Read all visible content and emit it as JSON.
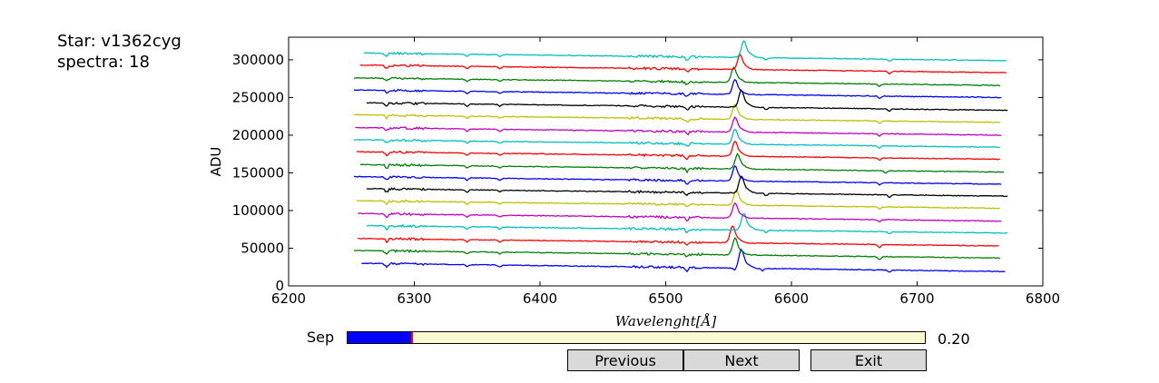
{
  "header": {
    "star_label": "Star: v1362cyg",
    "spectra_label": "spectra: 18"
  },
  "controls": {
    "slider_label": "Sep",
    "slider_value": 0.2,
    "slider_value_text": "0.20",
    "slider_range": [
      0,
      1
    ],
    "buttons": {
      "previous": "Previous",
      "next": "Next",
      "exit": "Exit"
    }
  },
  "chart_data": {
    "type": "line",
    "title": "",
    "xlabel": "$Wavelenght [\\AA]$",
    "ylabel": "ADU",
    "xlim": [
      6200,
      6800
    ],
    "ylim": [
      0,
      330000
    ],
    "xticks": [
      6200,
      6300,
      6400,
      6500,
      6600,
      6700,
      6800
    ],
    "yticks": [
      0,
      50000,
      100000,
      150000,
      200000,
      250000,
      300000
    ],
    "grid": false,
    "series_note_colors": [
      "#0000ff",
      "#008000",
      "#ff0000",
      "#00bfbf",
      "#bfbf00",
      "#bf00bf",
      "#000000"
    ],
    "series": [
      {
        "color": "#0000ff",
        "x_range": [
          6258,
          6770
        ],
        "offset": 30000,
        "slope": -11000,
        "peak": [
          6560,
          20000
        ],
        "dips": [
          [
            6278,
            4000
          ],
          [
            6342,
            3000
          ],
          [
            6368,
            2500
          ],
          [
            6517,
            4000
          ],
          [
            6555,
            3000
          ],
          [
            6577,
            3000
          ],
          [
            6678,
            3000
          ]
        ]
      },
      {
        "color": "#008000",
        "x_range": [
          6252,
          6766
        ],
        "offset": 47000,
        "slope": -10000,
        "peak": [
          6555,
          18000
        ],
        "dips": [
          [
            6278,
            4000
          ],
          [
            6342,
            3000
          ],
          [
            6368,
            2500
          ],
          [
            6517,
            4000
          ],
          [
            6670,
            4000
          ]
        ]
      },
      {
        "color": "#ff0000",
        "x_range": [
          6255,
          6765
        ],
        "offset": 63000,
        "slope": -10000,
        "peak": [
          6553,
          18000
        ],
        "dips": [
          [
            6278,
            4000
          ],
          [
            6342,
            3000
          ],
          [
            6368,
            2500
          ],
          [
            6517,
            4000
          ],
          [
            6670,
            4000
          ]
        ]
      },
      {
        "color": "#00bfbf",
        "x_range": [
          6262,
          6772
        ],
        "offset": 80000,
        "slope": -10000,
        "peak": [
          6562,
          18000
        ],
        "dips": [
          [
            6278,
            4000
          ],
          [
            6342,
            3000
          ],
          [
            6368,
            2500
          ],
          [
            6517,
            4000
          ],
          [
            6580,
            3000
          ],
          [
            6678,
            3000
          ]
        ]
      },
      {
        "color": "#bf00bf",
        "x_range": [
          6255,
          6767
        ],
        "offset": 96000,
        "slope": -10000,
        "peak": [
          6555,
          16000
        ],
        "dips": [
          [
            6278,
            4000
          ],
          [
            6342,
            3000
          ],
          [
            6368,
            2500
          ],
          [
            6517,
            4000
          ],
          [
            6670,
            3000
          ]
        ]
      },
      {
        "color": "#bfbf00",
        "x_range": [
          6254,
          6766
        ],
        "offset": 113000,
        "slope": -10000,
        "peak": [
          6556,
          16000
        ],
        "dips": [
          [
            6278,
            4000
          ],
          [
            6342,
            3000
          ],
          [
            6368,
            2500
          ],
          [
            6517,
            4000
          ],
          [
            6670,
            3000
          ]
        ]
      },
      {
        "color": "#000000",
        "x_range": [
          6262,
          6772
        ],
        "offset": 129000,
        "slope": -10000,
        "peak": [
          6560,
          18000
        ],
        "dips": [
          [
            6278,
            4000
          ],
          [
            6342,
            3000
          ],
          [
            6368,
            2500
          ],
          [
            6517,
            4000
          ],
          [
            6580,
            3000
          ],
          [
            6678,
            3000
          ]
        ]
      },
      {
        "color": "#0000ff",
        "x_range": [
          6252,
          6767
        ],
        "offset": 145000,
        "slope": -10000,
        "peak": [
          6555,
          16000
        ],
        "dips": [
          [
            6278,
            4000
          ],
          [
            6342,
            3000
          ],
          [
            6368,
            2500
          ],
          [
            6517,
            4000
          ],
          [
            6670,
            3000
          ]
        ]
      },
      {
        "color": "#008000",
        "x_range": [
          6257,
          6769
        ],
        "offset": 161000,
        "slope": -10000,
        "peak": [
          6557,
          16000
        ],
        "dips": [
          [
            6278,
            4000
          ],
          [
            6342,
            3000
          ],
          [
            6368,
            2500
          ],
          [
            6517,
            4000
          ],
          [
            6675,
            3000
          ]
        ]
      },
      {
        "color": "#ff0000",
        "x_range": [
          6254,
          6766
        ],
        "offset": 178000,
        "slope": -10000,
        "peak": [
          6555,
          16000
        ],
        "dips": [
          [
            6278,
            4000
          ],
          [
            6342,
            3000
          ],
          [
            6368,
            2500
          ],
          [
            6517,
            4000
          ],
          [
            6670,
            3000
          ]
        ]
      },
      {
        "color": "#00bfbf",
        "x_range": [
          6252,
          6766
        ],
        "offset": 194000,
        "slope": -10000,
        "peak": [
          6555,
          16000
        ],
        "dips": [
          [
            6278,
            4000
          ],
          [
            6342,
            3000
          ],
          [
            6368,
            2500
          ],
          [
            6517,
            4000
          ],
          [
            6670,
            3000
          ]
        ]
      },
      {
        "color": "#bf00bf",
        "x_range": [
          6253,
          6767
        ],
        "offset": 210000,
        "slope": -10000,
        "peak": [
          6555,
          16000
        ],
        "dips": [
          [
            6278,
            4000
          ],
          [
            6342,
            3000
          ],
          [
            6368,
            2500
          ],
          [
            6517,
            4000
          ],
          [
            6670,
            3000
          ]
        ]
      },
      {
        "color": "#bfbf00",
        "x_range": [
          6252,
          6766
        ],
        "offset": 227000,
        "slope": -10000,
        "peak": [
          6555,
          16000
        ],
        "dips": [
          [
            6278,
            4000
          ],
          [
            6342,
            3000
          ],
          [
            6368,
            2500
          ],
          [
            6517,
            4000
          ],
          [
            6670,
            3000
          ]
        ]
      },
      {
        "color": "#000000",
        "x_range": [
          6262,
          6772
        ],
        "offset": 243000,
        "slope": -10000,
        "peak": [
          6560,
          18000
        ],
        "dips": [
          [
            6278,
            4000
          ],
          [
            6342,
            3000
          ],
          [
            6368,
            2500
          ],
          [
            6517,
            4000
          ],
          [
            6580,
            3000
          ],
          [
            6678,
            3000
          ]
        ]
      },
      {
        "color": "#0000ff",
        "x_range": [
          6252,
          6767
        ],
        "offset": 260000,
        "slope": -10000,
        "peak": [
          6555,
          16000
        ],
        "dips": [
          [
            6278,
            4000
          ],
          [
            6342,
            3000
          ],
          [
            6368,
            2500
          ],
          [
            6517,
            4000
          ],
          [
            6670,
            3000
          ]
        ]
      },
      {
        "color": "#008000",
        "x_range": [
          6252,
          6766
        ],
        "offset": 276000,
        "slope": -10000,
        "peak": [
          6554,
          16000
        ],
        "dips": [
          [
            6278,
            4000
          ],
          [
            6342,
            3000
          ],
          [
            6368,
            2500
          ],
          [
            6517,
            4000
          ],
          [
            6670,
            3000
          ]
        ]
      },
      {
        "color": "#ff0000",
        "x_range": [
          6257,
          6771
        ],
        "offset": 293000,
        "slope": -10000,
        "peak": [
          6559,
          16000
        ],
        "dips": [
          [
            6278,
            4000
          ],
          [
            6342,
            3000
          ],
          [
            6368,
            2500
          ],
          [
            6517,
            4000
          ],
          [
            6678,
            3000
          ]
        ]
      },
      {
        "color": "#00bfbf",
        "x_range": [
          6260,
          6771
        ],
        "offset": 309000,
        "slope": -10000,
        "peak": [
          6562,
          18000
        ],
        "dips": [
          [
            6278,
            4000
          ],
          [
            6342,
            3000
          ],
          [
            6368,
            2500
          ],
          [
            6517,
            4000
          ],
          [
            6580,
            3000
          ],
          [
            6678,
            3000
          ]
        ]
      }
    ]
  }
}
